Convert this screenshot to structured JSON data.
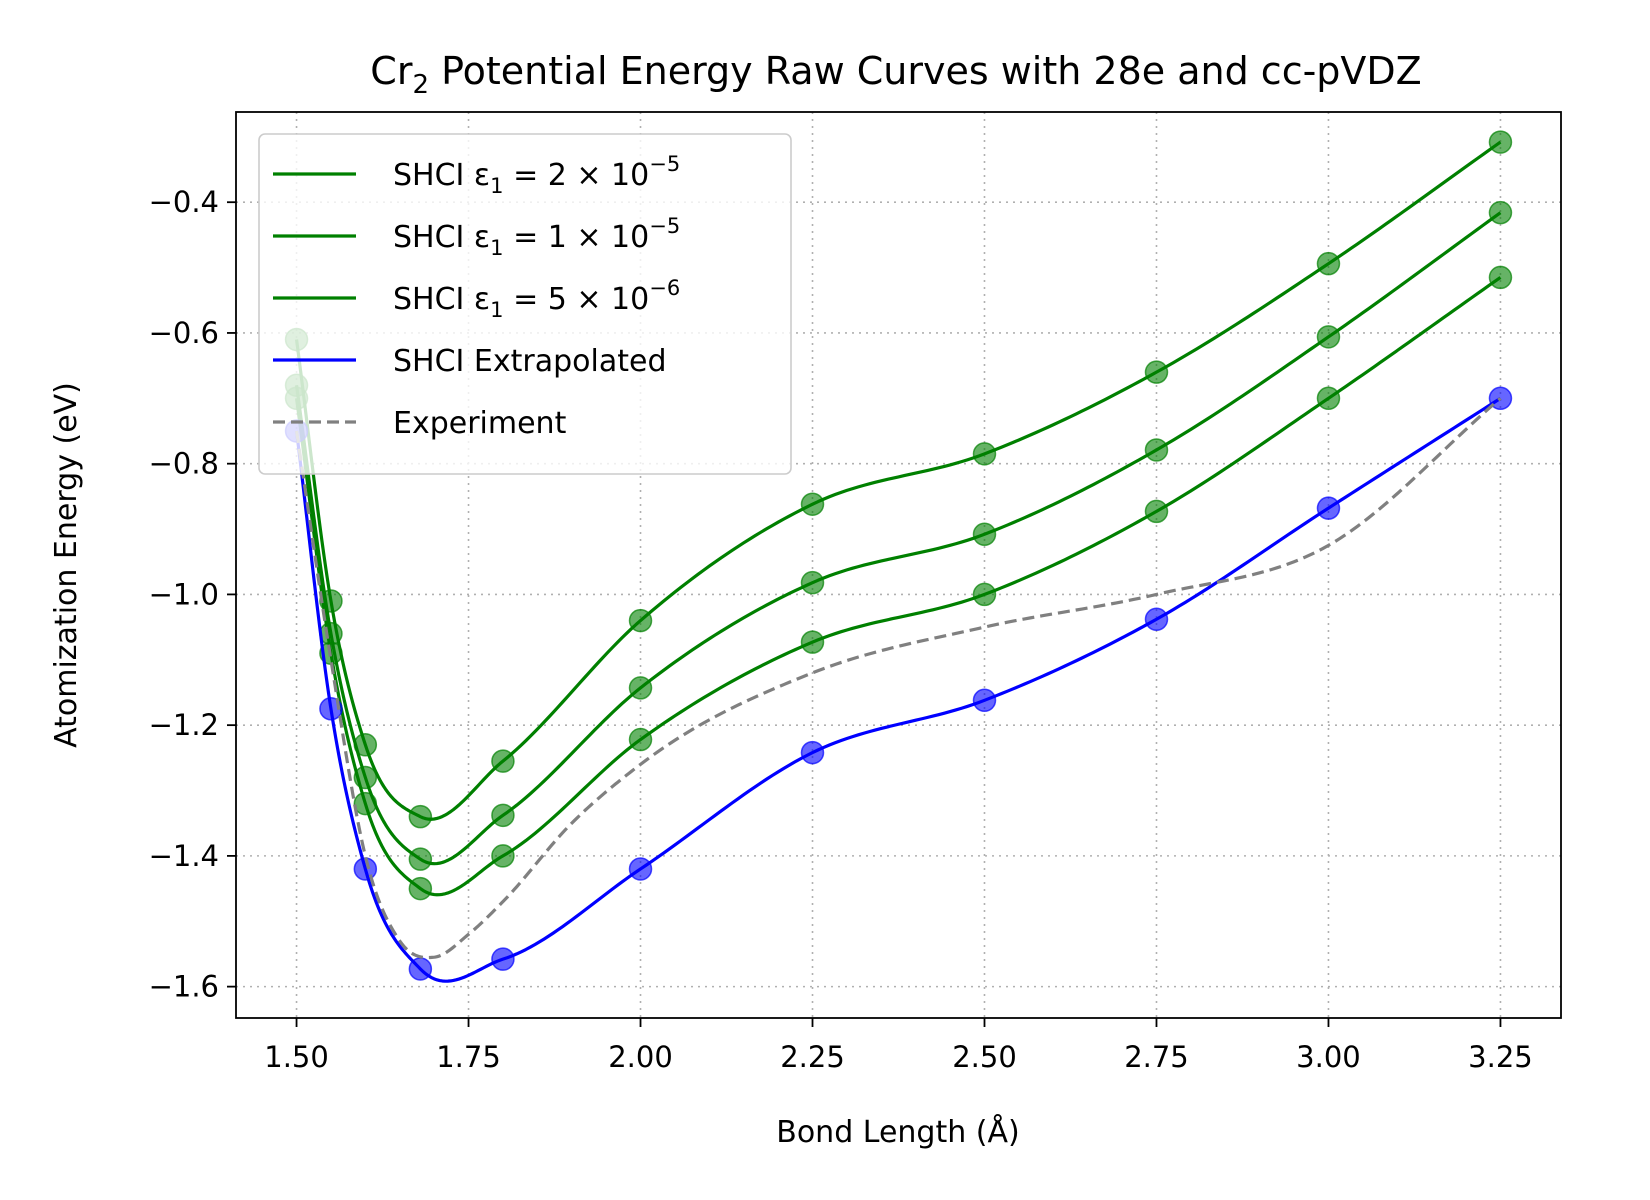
{
  "chart_data": {
    "type": "line",
    "title": "Cr",
    "title_sub": "2",
    "title_rest": " Potential Energy Raw Curves with 28e and cc-pVDZ",
    "xlabel": "Bond Length (Å)",
    "ylabel": "Atomization Energy (eV)",
    "xlim": [
      1.412,
      3.338
    ],
    "ylim": [
      -1.648,
      -0.262
    ],
    "xticks": [
      1.5,
      1.75,
      2.0,
      2.25,
      2.5,
      2.75,
      3.0,
      3.25
    ],
    "xtick_labels": [
      "1.50",
      "1.75",
      "2.00",
      "2.25",
      "2.50",
      "2.75",
      "3.00",
      "3.25"
    ],
    "yticks": [
      -1.6,
      -1.4,
      -1.2,
      -1.0,
      -0.8,
      -0.6,
      -0.4
    ],
    "ytick_labels": [
      "−1.6",
      "−1.4",
      "−1.2",
      "−1.0",
      "−0.8",
      "−0.6",
      "−0.4"
    ],
    "grid": true,
    "legend_position": "top-left",
    "series": [
      {
        "name": "SHCI ε",
        "name_sub": "1",
        "name_mid": " = 2 × 10",
        "name_sup": "−5",
        "color": "#008000",
        "style": "solid",
        "markers": true,
        "x": [
          1.5,
          1.55,
          1.6,
          1.68,
          1.8,
          2.0,
          2.25,
          2.5,
          2.75,
          3.0,
          3.25
        ],
        "y": [
          -0.61,
          -1.01,
          -1.23,
          -1.34,
          -1.255,
          -1.04,
          -0.862,
          -0.785,
          -0.66,
          -0.494,
          -0.308
        ]
      },
      {
        "name": "SHCI ε",
        "name_sub": "1",
        "name_mid": " = 1 × 10",
        "name_sup": "−5",
        "color": "#008000",
        "style": "solid",
        "markers": true,
        "x": [
          1.5,
          1.55,
          1.6,
          1.68,
          1.8,
          2.0,
          2.25,
          2.5,
          2.75,
          3.0,
          3.25
        ],
        "y": [
          -0.68,
          -1.06,
          -1.28,
          -1.405,
          -1.338,
          -1.143,
          -0.982,
          -0.908,
          -0.779,
          -0.606,
          -0.416
        ]
      },
      {
        "name": "SHCI ε",
        "name_sub": "1",
        "name_mid": " = 5 × 10",
        "name_sup": "−6",
        "color": "#008000",
        "style": "solid",
        "markers": true,
        "x": [
          1.5,
          1.55,
          1.6,
          1.68,
          1.8,
          2.0,
          2.25,
          2.5,
          2.75,
          3.0,
          3.25
        ],
        "y": [
          -0.7,
          -1.09,
          -1.32,
          -1.45,
          -1.4,
          -1.222,
          -1.073,
          -1.0,
          -0.873,
          -0.7,
          -0.515
        ]
      },
      {
        "name": "SHCI Extrapolated",
        "color": "#0000ff",
        "style": "solid",
        "markers": true,
        "x": [
          1.5,
          1.55,
          1.6,
          1.68,
          1.8,
          2.0,
          2.25,
          2.5,
          2.75,
          3.0,
          3.25
        ],
        "y": [
          -0.75,
          -1.175,
          -1.42,
          -1.573,
          -1.558,
          -1.42,
          -1.242,
          -1.162,
          -1.038,
          -0.868,
          -0.7
        ]
      },
      {
        "name": "Experiment",
        "color": "#808080",
        "style": "dashed",
        "markers": false,
        "x": [
          1.5,
          1.55,
          1.6,
          1.65,
          1.7,
          1.75,
          1.8,
          1.9,
          2.0,
          2.25,
          2.5,
          2.75,
          3.0,
          3.25
        ],
        "y": [
          -0.75,
          -1.1,
          -1.4,
          -1.53,
          -1.555,
          -1.52,
          -1.47,
          -1.35,
          -1.26,
          -1.12,
          -1.05,
          -1.0,
          -0.925,
          -0.7
        ]
      }
    ]
  }
}
